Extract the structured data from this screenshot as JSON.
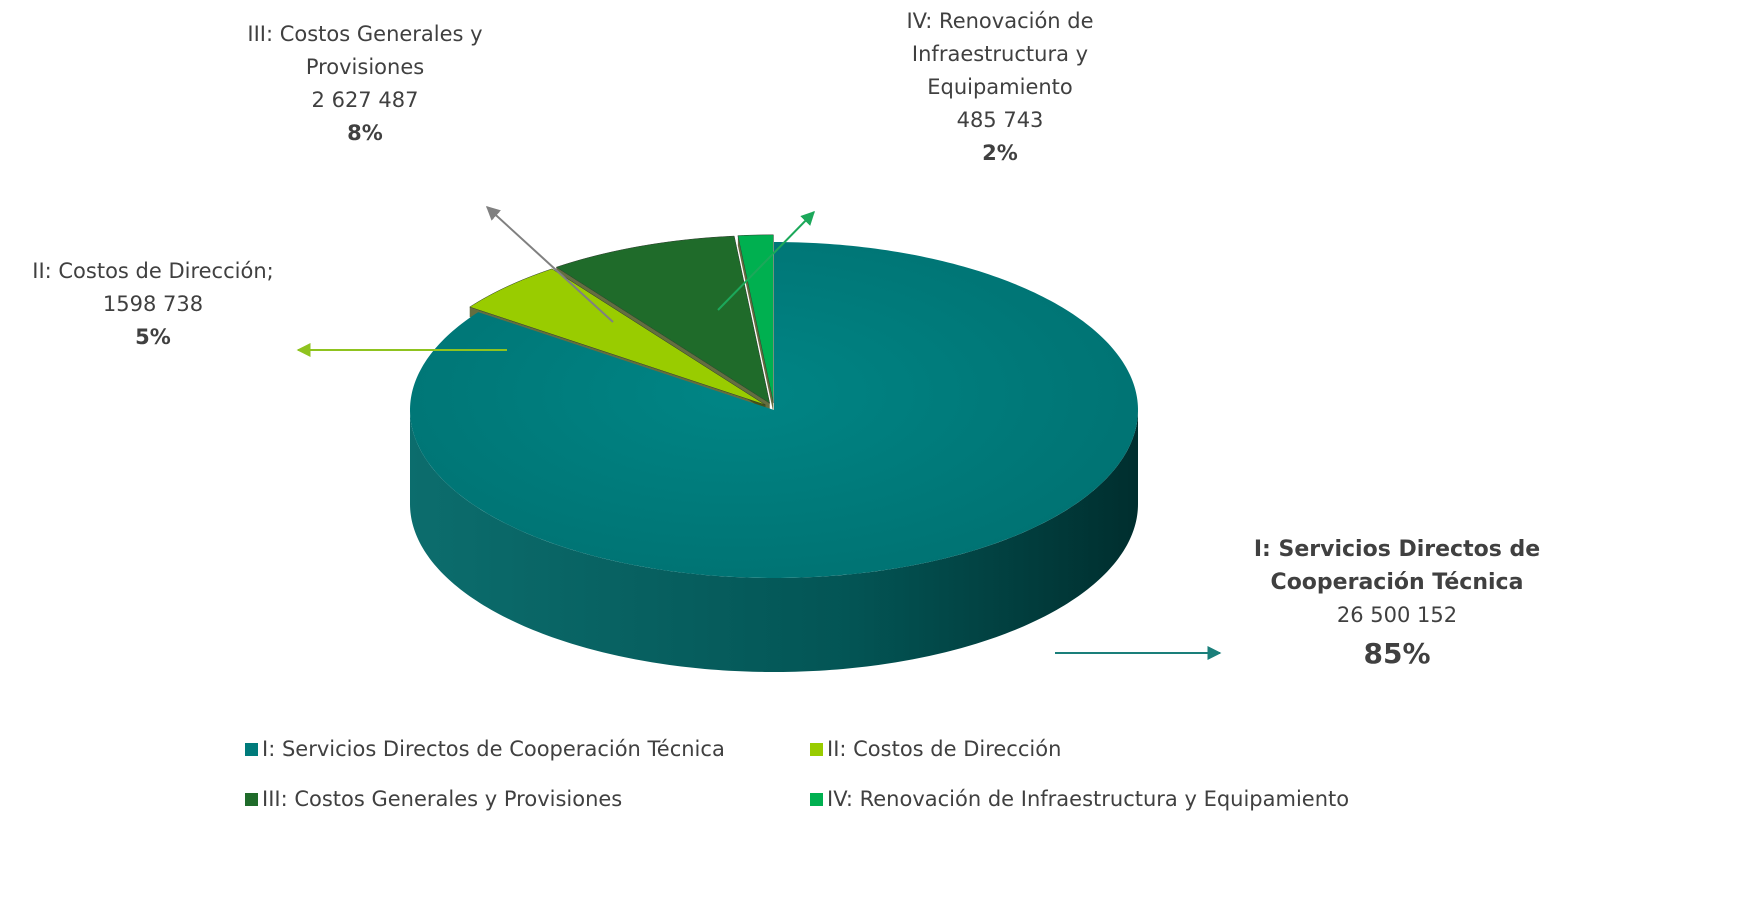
{
  "chart_data": {
    "type": "pie3d",
    "categories": [
      "I: Servicios Directos de Cooperación Técnica",
      "II: Costos de Dirección",
      "III: Costos Generales y Provisiones",
      "IV: Renovación de Infraestructura y Equipamiento"
    ],
    "callout_names": [
      "I: Servicios Directos de Cooperación Técnica",
      "II: Costos de Dirección;",
      "III: Costos Generales y Provisiones",
      "IV: Renovación de Infraestructura y Equipamiento"
    ],
    "values": [
      26500152,
      1598738,
      2627487,
      485743
    ],
    "value_labels": [
      "26 500 152",
      "1598 738",
      "2 627 487",
      "485 743"
    ],
    "percentages": [
      85,
      5,
      8,
      2
    ],
    "percentage_labels": [
      "85%",
      "5%",
      "8%",
      "2%"
    ],
    "colors": [
      "#007b7b",
      "#99cc00",
      "#1f6b2a",
      "#00b050"
    ],
    "legend": "bottom"
  }
}
